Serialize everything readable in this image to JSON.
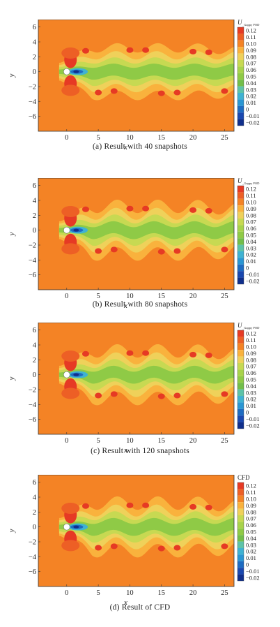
{
  "chart_data": [
    {
      "type": "heatmap",
      "caption": "(a) Result with 40 snapshots",
      "colorbar_title": "U",
      "colorbar_subtitle": "_Gappy POD",
      "xlabel": "x",
      "ylabel": "y",
      "xlim": [
        -4.5,
        26.5
      ],
      "ylim": [
        -8,
        7
      ],
      "xticks": [
        "0",
        "5",
        "10",
        "15",
        "20",
        "25"
      ],
      "yticks": [
        "6",
        "4",
        "2",
        "0",
        "−2",
        "−4",
        "−6"
      ],
      "levels": [
        "0.12",
        "0.11",
        "0.10",
        "0.09",
        "0.08",
        "0.07",
        "0.06",
        "0.05",
        "0.04",
        "0.03",
        "0.02",
        "0.01",
        "0",
        "−0.01",
        "−0.02"
      ],
      "colors": [
        "#e63a24",
        "#ed5f25",
        "#f48325",
        "#f9b23d",
        "#efd15a",
        "#c7d952",
        "#a8d34b",
        "#8fca46",
        "#72be4a",
        "#5dc3a8",
        "#3fb2d2",
        "#2a96d3",
        "#1e6cc2",
        "#1a48b0",
        "#102f8c"
      ]
    },
    {
      "type": "heatmap",
      "caption": "(b) Result with 80 snapshots",
      "colorbar_title": "U",
      "colorbar_subtitle": "_Gappy POD",
      "xlabel": "x",
      "ylabel": "y",
      "xlim": [
        -4.5,
        26.5
      ],
      "ylim": [
        -8,
        7
      ],
      "xticks": [
        "0",
        "5",
        "10",
        "15",
        "20",
        "25"
      ],
      "yticks": [
        "6",
        "4",
        "2",
        "0",
        "−2",
        "−4",
        "−6"
      ],
      "levels": [
        "0.12",
        "0.11",
        "0.10",
        "0.09",
        "0.08",
        "0.07",
        "0.06",
        "0.05",
        "0.04",
        "0.03",
        "0.02",
        "0.01",
        "0",
        "−0.01",
        "−0.02"
      ],
      "colors": [
        "#e63a24",
        "#ed5f25",
        "#f48325",
        "#f9b23d",
        "#efd15a",
        "#c7d952",
        "#a8d34b",
        "#8fca46",
        "#72be4a",
        "#5dc3a8",
        "#3fb2d2",
        "#2a96d3",
        "#1e6cc2",
        "#1a48b0",
        "#102f8c"
      ]
    },
    {
      "type": "heatmap",
      "caption": "(c) Result with 120 snapshots",
      "colorbar_title": "U",
      "colorbar_subtitle": "_Gappy POD",
      "xlabel": "x",
      "ylabel": "y",
      "xlim": [
        -4.5,
        26.5
      ],
      "ylim": [
        -8,
        7
      ],
      "xticks": [
        "0",
        "5",
        "10",
        "15",
        "20",
        "25"
      ],
      "yticks": [
        "6",
        "4",
        "2",
        "0",
        "−2",
        "−4",
        "−6"
      ],
      "levels": [
        "0.12",
        "0.11",
        "0.10",
        "0.09",
        "0.08",
        "0.07",
        "0.06",
        "0.05",
        "0.04",
        "0.03",
        "0.02",
        "0.01",
        "0",
        "−0.01",
        "−0.02"
      ],
      "colors": [
        "#e63a24",
        "#ed5f25",
        "#f48325",
        "#f9b23d",
        "#efd15a",
        "#c7d952",
        "#a8d34b",
        "#8fca46",
        "#72be4a",
        "#5dc3a8",
        "#3fb2d2",
        "#2a96d3",
        "#1e6cc2",
        "#1a48b0",
        "#102f8c"
      ]
    },
    {
      "type": "heatmap",
      "caption": "(d) Result of CFD",
      "colorbar_title": "CFD",
      "colorbar_subtitle": "",
      "xlabel": "x",
      "ylabel": "y",
      "xlim": [
        -4.5,
        26.5
      ],
      "ylim": [
        -8,
        7
      ],
      "xticks": [
        "0",
        "5",
        "10",
        "15",
        "20",
        "25"
      ],
      "yticks": [
        "6",
        "4",
        "2",
        "0",
        "−2",
        "−4",
        "−6"
      ],
      "levels": [
        "0.12",
        "0.11",
        "0.10",
        "0.09",
        "0.08",
        "0.07",
        "0.06",
        "0.05",
        "0.04",
        "0.03",
        "0.02",
        "0.01",
        "0",
        "−0.01",
        "−0.02"
      ],
      "colors": [
        "#e63a24",
        "#ed5f25",
        "#f48325",
        "#f9b23d",
        "#efd15a",
        "#c7d952",
        "#a8d34b",
        "#8fca46",
        "#72be4a",
        "#5dc3a8",
        "#3fb2d2",
        "#2a96d3",
        "#1e6cc2",
        "#1a48b0",
        "#102f8c"
      ]
    }
  ]
}
